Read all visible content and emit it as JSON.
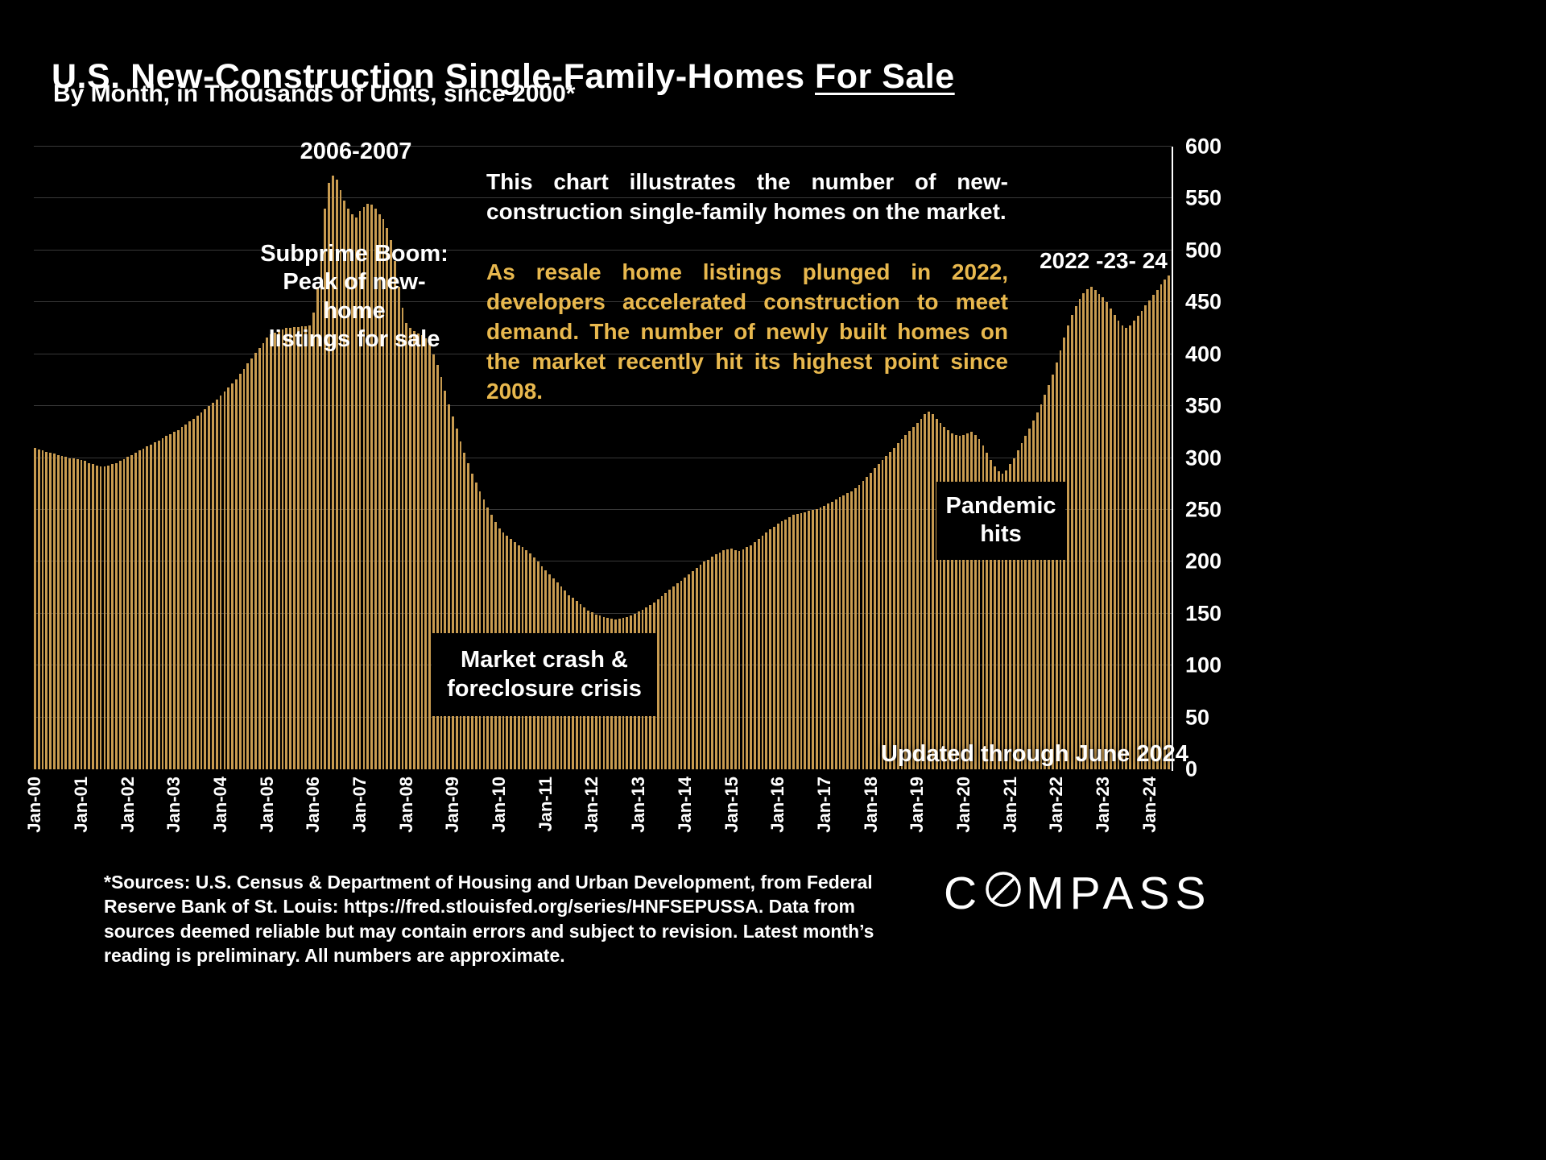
{
  "title": {
    "main": "U.S. New-Construction Single-Family-Homes ",
    "emphasis": "For Sale"
  },
  "subtitle": "By Month, in Thousands of Units, since 2000*",
  "annotations": {
    "peak_years": "2006-2007",
    "subprime": "Subprime Boom:\nPeak of new-home\nlistings for sale",
    "para_white": "This chart illustrates the number of new-construction single-family homes on the market.",
    "para_gold": "As resale home listings plunged in 2022, developers accelerated construction to meet demand.  The number of newly built homes on the market recently hit its highest point since 2008.",
    "recent_years": "2022 -23- 24",
    "pandemic": "Pandemic\nhits",
    "crash": "Market crash &\nforeclosure crisis",
    "updated": "Updated through June 2024"
  },
  "footer": {
    "sources": "*Sources: U.S. Census & Department of Housing and Urban Development, from Federal Reserve Bank of St. Louis:  https://fred.stlouisfed.org/series/HNFSEPUSSA. Data from sources deemed reliable but may contain errors and subject to revision. Latest month’s reading is preliminary. All numbers are approximate.",
    "logo_text_left": "C",
    "logo_text_right": "MPASS"
  },
  "colors": {
    "background": "#000000",
    "bars": "#C89B50",
    "gold_text": "#E8B84E",
    "text": "#FFFFFF"
  },
  "chart_data": {
    "type": "bar",
    "title": "U.S. New-Construction Single-Family-Homes For Sale",
    "xlabel": "Month",
    "ylabel": "Thousands of Units",
    "unit": "thousands of units",
    "frequency": "monthly",
    "x_start": "Jan-2000",
    "x_end": "Jun-2024",
    "ylim": [
      0,
      600
    ],
    "grid": true,
    "y_axis_position": "right",
    "yticks": [
      0,
      50,
      100,
      150,
      200,
      250,
      300,
      350,
      400,
      450,
      500,
      550,
      600
    ],
    "xticks": [
      "Jan-00",
      "Jan-01",
      "Jan-02",
      "Jan-03",
      "Jan-04",
      "Jan-05",
      "Jan-06",
      "Jan-07",
      "Jan-08",
      "Jan-09",
      "Jan-10",
      "Jan-11",
      "Jan-12",
      "Jan-13",
      "Jan-14",
      "Jan-15",
      "Jan-16",
      "Jan-17",
      "Jan-18",
      "Jan-19",
      "Jan-20",
      "Jan-21",
      "Jan-22",
      "Jan-23",
      "Jan-24"
    ],
    "bar_color": "#C89B50",
    "values": [
      310,
      308,
      307,
      306,
      305,
      304,
      303,
      302,
      301,
      300,
      300,
      299,
      298,
      297,
      295,
      294,
      293,
      292,
      292,
      293,
      294,
      295,
      297,
      299,
      301,
      303,
      305,
      307,
      309,
      311,
      313,
      315,
      317,
      319,
      321,
      323,
      325,
      327,
      330,
      332,
      335,
      338,
      341,
      344,
      347,
      350,
      353,
      356,
      360,
      364,
      368,
      372,
      376,
      381,
      386,
      391,
      396,
      401,
      406,
      411,
      416,
      419,
      421,
      423,
      424,
      425,
      425,
      426,
      426,
      427,
      427,
      428,
      440,
      465,
      500,
      540,
      565,
      572,
      568,
      558,
      548,
      540,
      535,
      532,
      538,
      542,
      545,
      544,
      540,
      535,
      530,
      522,
      510,
      490,
      465,
      445,
      430,
      425,
      422,
      420,
      418,
      415,
      410,
      400,
      390,
      378,
      365,
      352,
      340,
      328,
      316,
      305,
      295,
      285,
      276,
      268,
      260,
      252,
      245,
      238,
      232,
      228,
      225,
      222,
      219,
      216,
      214,
      211,
      208,
      204,
      200,
      196,
      192,
      188,
      184,
      180,
      176,
      172,
      168,
      165,
      162,
      159,
      156,
      153,
      151,
      149,
      148,
      147,
      146,
      145,
      144,
      145,
      146,
      147,
      148,
      150,
      152,
      154,
      156,
      158,
      161,
      164,
      167,
      170,
      173,
      176,
      179,
      182,
      185,
      188,
      191,
      194,
      197,
      200,
      202,
      205,
      207,
      209,
      211,
      212,
      213,
      211,
      210,
      212,
      214,
      216,
      219,
      222,
      225,
      228,
      231,
      234,
      237,
      239,
      241,
      243,
      245,
      246,
      247,
      248,
      249,
      250,
      251,
      252,
      254,
      256,
      258,
      260,
      262,
      264,
      266,
      268,
      271,
      274,
      278,
      282,
      286,
      290,
      294,
      298,
      302,
      306,
      310,
      314,
      318,
      322,
      326,
      330,
      334,
      338,
      342,
      345,
      342,
      338,
      334,
      330,
      327,
      324,
      322,
      321,
      322,
      324,
      325,
      322,
      318,
      312,
      305,
      298,
      292,
      287,
      285,
      288,
      294,
      300,
      307,
      314,
      321,
      328,
      336,
      344,
      352,
      361,
      370,
      380,
      392,
      404,
      416,
      428,
      438,
      446,
      453,
      459,
      463,
      465,
      462,
      458,
      455,
      450,
      444,
      438,
      432,
      428,
      425,
      428,
      432,
      437,
      442,
      447,
      452,
      457,
      462,
      467,
      472,
      476
    ]
  }
}
